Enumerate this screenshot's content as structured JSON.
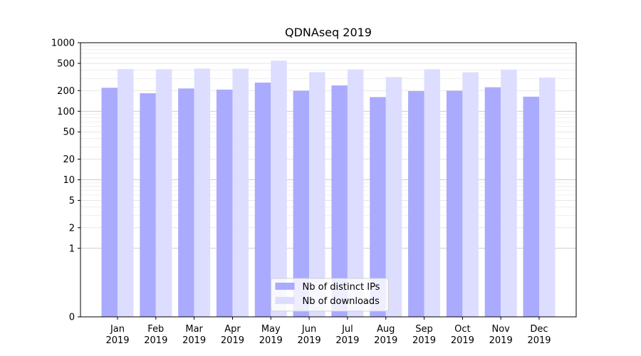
{
  "chart_data": {
    "type": "bar",
    "title": "QDNAseq 2019",
    "xlabel": "",
    "ylabel": "",
    "yscale": "symlog",
    "ylim": [
      0,
      1000
    ],
    "yticks": [
      0,
      1,
      2,
      5,
      10,
      20,
      50,
      100,
      200,
      500,
      1000
    ],
    "ytick_labels": [
      "0",
      "1",
      "2",
      "5",
      "10",
      "20",
      "50",
      "100",
      "200",
      "500",
      "1000"
    ],
    "grid": true,
    "legend_position": "lower center",
    "categories": [
      [
        "Jan",
        "2019"
      ],
      [
        "Feb",
        "2019"
      ],
      [
        "Mar",
        "2019"
      ],
      [
        "Apr",
        "2019"
      ],
      [
        "May",
        "2019"
      ],
      [
        "Jun",
        "2019"
      ],
      [
        "Jul",
        "2019"
      ],
      [
        "Aug",
        "2019"
      ],
      [
        "Sep",
        "2019"
      ],
      [
        "Oct",
        "2019"
      ],
      [
        "Nov",
        "2019"
      ],
      [
        "Dec",
        "2019"
      ]
    ],
    "series": [
      {
        "name": "Nb of distinct IPs",
        "color": "#aaaaff",
        "values": [
          220,
          183,
          215,
          207,
          262,
          199,
          238,
          161,
          197,
          199,
          224,
          163
        ]
      },
      {
        "name": "Nb of downloads",
        "color": "#ddddff",
        "values": [
          412,
          410,
          420,
          418,
          548,
          372,
          408,
          315,
          410,
          370,
          405,
          310
        ]
      }
    ]
  }
}
